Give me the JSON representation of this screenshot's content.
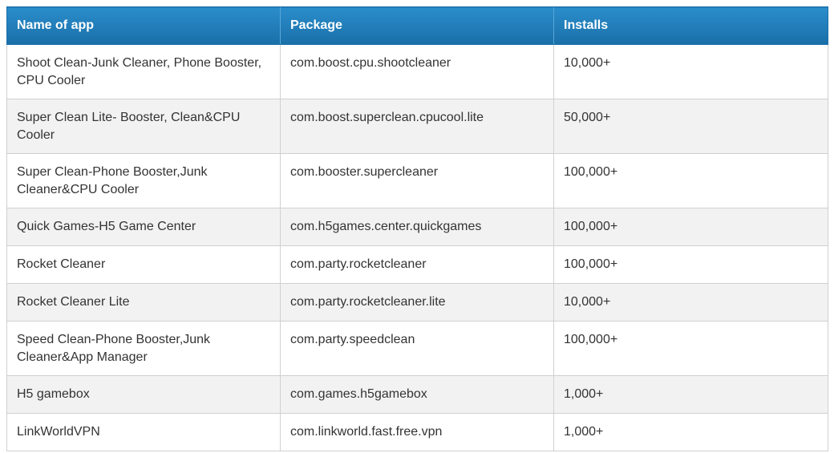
{
  "table": {
    "headers": [
      "Name of app",
      "Package",
      "Installs"
    ],
    "rows": [
      [
        "Shoot Clean-Junk Cleaner, Phone Booster, CPU Cooler",
        "com.boost.cpu.shootcleaner",
        "10,000+"
      ],
      [
        "Super Clean Lite- Booster, Clean&CPU Cooler",
        "com.boost.superclean.cpucool.lite",
        "50,000+"
      ],
      [
        "Super Clean-Phone Booster,Junk Cleaner&CPU Cooler",
        "com.booster.supercleaner",
        "100,000+"
      ],
      [
        "Quick Games-H5 Game Center",
        "com.h5games.center.quickgames",
        "100,000+"
      ],
      [
        "Rocket Cleaner",
        "com.party.rocketcleaner",
        "100,000+"
      ],
      [
        "Rocket Cleaner Lite",
        "com.party.rocketcleaner.lite",
        "10,000+"
      ],
      [
        "Speed Clean-Phone Booster,Junk Cleaner&App Manager",
        "com.party.speedclean",
        "100,000+"
      ],
      [
        "H5 gamebox",
        "com.games.h5gamebox",
        "1,000+"
      ],
      [
        "LinkWorldVPN",
        "com.linkworld.fast.free.vpn",
        "1,000+"
      ]
    ]
  },
  "colors": {
    "header_bg": "#1f7bbb",
    "header_text": "#ffffff",
    "row_alt_bg": "#f2f2f2",
    "border": "#d0d0d0"
  }
}
